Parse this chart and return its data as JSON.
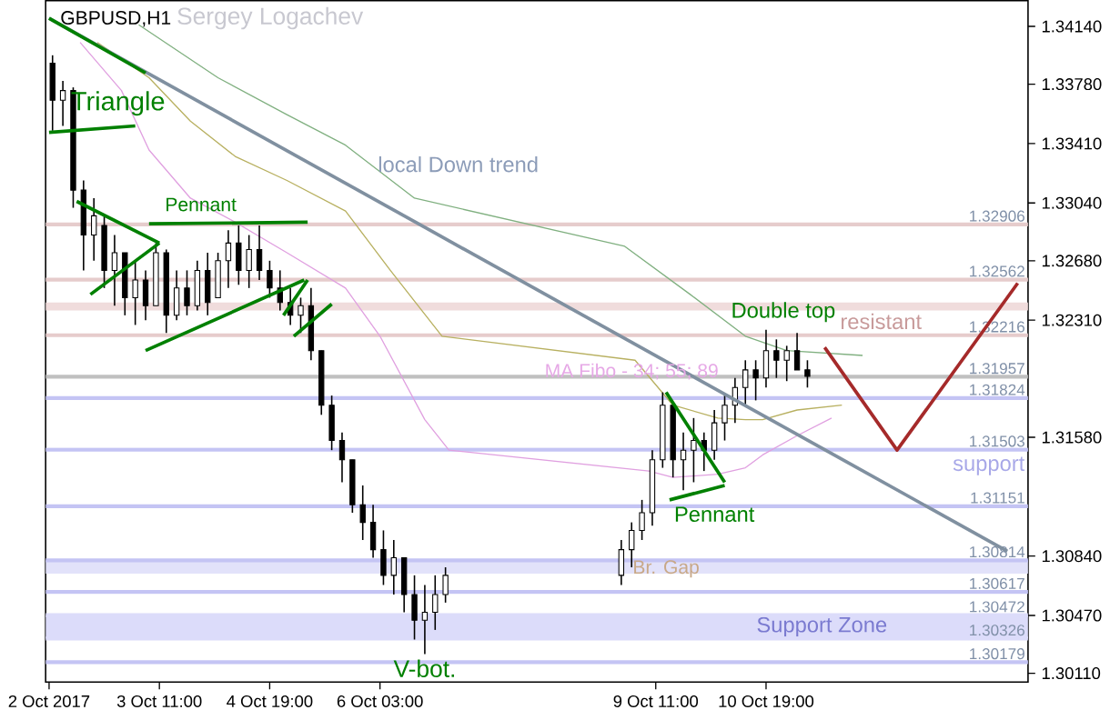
{
  "chart_data": {
    "type": "candlestick",
    "title": "GBPUSD,H1",
    "subtitle": "Sergey Logachev",
    "xlim": [
      "2017-10-02T02:00",
      "2017-10-13T23:00"
    ],
    "ylim": [
      1.30055,
      1.343
    ],
    "xticks": [
      {
        "value": "2017-10-02T03:00",
        "label": "2 Oct 2017"
      },
      {
        "value": "2017-10-03T11:00",
        "label": "3 Oct 11:00"
      },
      {
        "value": "2017-10-04T19:00",
        "label": "4 Oct 19:00"
      },
      {
        "value": "2017-10-06T03:00",
        "label": "6 Oct 03:00"
      },
      {
        "value": "2017-10-09T11:00",
        "label": "9 Oct 11:00"
      },
      {
        "value": "2017-10-10T19:00",
        "label": "10 Oct 19:00"
      }
    ],
    "yticks": [
      {
        "value": 1.3011,
        "label": "1.30110"
      },
      {
        "value": 1.3047,
        "label": "1.30470"
      },
      {
        "value": 1.3084,
        "label": "1.30840"
      },
      {
        "value": 1.3158,
        "label": "1.31580"
      },
      {
        "value": 1.3231,
        "label": "1.32310"
      },
      {
        "value": 1.3268,
        "label": "1.32680"
      },
      {
        "value": 1.3304,
        "label": "1.33040"
      },
      {
        "value": 1.3341,
        "label": "1.33410"
      },
      {
        "value": 1.3378,
        "label": "1.33780"
      },
      {
        "value": 1.3414,
        "label": "1.34140"
      }
    ],
    "series": [
      {
        "type": "line",
        "color": "#e0a0e0",
        "x": [
          "2017-10-02T12:00",
          "2017-10-03T00:00",
          "2017-10-03T08:00",
          "2017-10-03T20:00",
          "2017-10-04T09:00",
          "2017-10-05T00:00",
          "2017-10-05T17:00",
          "2017-10-06T03:00",
          "2017-10-06T16:00",
          "2017-10-06T23:00",
          "2017-10-09T09:00",
          "2017-10-09T16:00",
          "2017-10-10T05:00",
          "2017-10-10T13:00",
          "2017-10-10T18:00",
          "2017-10-11T04:00",
          "2017-10-11T14:00"
        ],
        "values": [
          1.3404,
          1.3374,
          1.3337,
          1.3307,
          1.3292,
          1.3273,
          1.3251,
          1.3221,
          1.3169,
          1.315,
          1.3137,
          1.3133,
          1.3135,
          1.3139,
          1.3147,
          1.3159,
          1.317
        ]
      },
      {
        "type": "line",
        "color": "#b8b060",
        "x": [
          "2017-10-02T17:00",
          "2017-10-03T08:00",
          "2017-10-03T20:00",
          "2017-10-04T09:00",
          "2017-10-05T00:00",
          "2017-10-05T17:00",
          "2017-10-06T06:00",
          "2017-10-06T21:00",
          "2017-10-09T05:00",
          "2017-10-09T16:00",
          "2017-10-10T05:00",
          "2017-10-10T13:00",
          "2017-10-10T18:00",
          "2017-10-11T04:00",
          "2017-10-11T17:00"
        ],
        "values": [
          1.3404,
          1.3382,
          1.3355,
          1.3333,
          1.3318,
          1.3299,
          1.3262,
          1.3221,
          1.3206,
          1.3178,
          1.317,
          1.3169,
          1.3169,
          1.3175,
          1.3178
        ]
      },
      {
        "type": "line",
        "color": "#80b080",
        "x": [
          "2017-10-03T05:00",
          "2017-10-04T04:00",
          "2017-10-05T00:00",
          "2017-10-05T17:00",
          "2017-10-06T13:00",
          "2017-10-09T02:00",
          "2017-10-09T21:00",
          "2017-10-10T13:00",
          "2017-10-11T01:00",
          "2017-10-11T23:00"
        ],
        "values": [
          1.3415,
          1.3382,
          1.3359,
          1.334,
          1.3307,
          1.3277,
          1.3247,
          1.3221,
          1.3212,
          1.3209
        ]
      },
      {
        "type": "candlestick",
        "color": "#000000",
        "x": [
          "2017-10-02T04:00",
          "2017-10-02T07:00",
          "2017-10-02T10:00",
          "2017-10-02T13:00",
          "2017-10-02T16:00",
          "2017-10-02T19:00",
          "2017-10-02T22:00",
          "2017-10-03T01:00",
          "2017-10-03T04:00",
          "2017-10-03T07:00",
          "2017-10-03T10:00",
          "2017-10-03T13:00",
          "2017-10-03T16:00",
          "2017-10-03T19:00",
          "2017-10-03T22:00",
          "2017-10-04T01:00",
          "2017-10-04T04:00",
          "2017-10-04T07:00",
          "2017-10-04T10:00",
          "2017-10-04T13:00",
          "2017-10-04T16:00",
          "2017-10-04T19:00",
          "2017-10-04T22:00",
          "2017-10-05T01:00",
          "2017-10-05T04:00",
          "2017-10-05T07:00",
          "2017-10-05T10:00",
          "2017-10-05T13:00",
          "2017-10-05T16:00",
          "2017-10-05T19:00",
          "2017-10-05T22:00",
          "2017-10-06T01:00",
          "2017-10-06T04:00",
          "2017-10-06T07:00",
          "2017-10-06T10:00",
          "2017-10-06T13:00",
          "2017-10-06T16:00",
          "2017-10-06T19:00",
          "2017-10-06T22:00",
          "2017-10-09T01:00",
          "2017-10-09T04:00",
          "2017-10-09T07:00",
          "2017-10-09T10:00",
          "2017-10-09T13:00",
          "2017-10-09T16:00",
          "2017-10-09T19:00",
          "2017-10-09T22:00",
          "2017-10-10T01:00",
          "2017-10-10T04:00",
          "2017-10-10T07:00",
          "2017-10-10T10:00",
          "2017-10-10T13:00",
          "2017-10-10T16:00",
          "2017-10-10T19:00",
          "2017-10-10T22:00",
          "2017-10-11T01:00",
          "2017-10-11T04:00",
          "2017-10-11T07:00"
        ],
        "ohlc": [
          [
            1.3391,
            1.3396,
            1.3349,
            1.3368
          ],
          [
            1.3368,
            1.338,
            1.3352,
            1.3374
          ],
          [
            1.3374,
            1.3376,
            1.3301,
            1.3312
          ],
          [
            1.3312,
            1.3318,
            1.3262,
            1.3284
          ],
          [
            1.3284,
            1.3307,
            1.3268,
            1.3296
          ],
          [
            1.329,
            1.3296,
            1.3251,
            1.3262
          ],
          [
            1.3262,
            1.3284,
            1.324,
            1.3273
          ],
          [
            1.3273,
            1.3273,
            1.3234,
            1.3245
          ],
          [
            1.3245,
            1.3268,
            1.3228,
            1.3256
          ],
          [
            1.3256,
            1.3262,
            1.3231,
            1.324
          ],
          [
            1.324,
            1.3279,
            1.324,
            1.3273
          ],
          [
            1.3273,
            1.3275,
            1.3223,
            1.3234
          ],
          [
            1.3234,
            1.3262,
            1.3231,
            1.3251
          ],
          [
            1.3251,
            1.3262,
            1.3234,
            1.324
          ],
          [
            1.324,
            1.3268,
            1.3237,
            1.3262
          ],
          [
            1.3262,
            1.3273,
            1.3234,
            1.3242
          ],
          [
            1.3245,
            1.3273,
            1.3245,
            1.3268
          ],
          [
            1.3268,
            1.3287,
            1.3251,
            1.3279
          ],
          [
            1.3279,
            1.329,
            1.3253,
            1.3262
          ],
          [
            1.3262,
            1.3284,
            1.3251,
            1.3275
          ],
          [
            1.3275,
            1.329,
            1.3256,
            1.3262
          ],
          [
            1.3262,
            1.3268,
            1.3245,
            1.3251
          ],
          [
            1.3251,
            1.3262,
            1.3237,
            1.3242
          ],
          [
            1.3242,
            1.3251,
            1.3228,
            1.3234
          ],
          [
            1.3234,
            1.3245,
            1.3223,
            1.324
          ],
          [
            1.324,
            1.3251,
            1.3206,
            1.3212
          ],
          [
            1.3212,
            1.3212,
            1.3172,
            1.3178
          ],
          [
            1.3178,
            1.3184,
            1.315,
            1.3156
          ],
          [
            1.3156,
            1.3161,
            1.313,
            1.3144
          ],
          [
            1.3144,
            1.3144,
            1.3111,
            1.3116
          ],
          [
            1.3116,
            1.3128,
            1.3094,
            1.3105
          ],
          [
            1.3105,
            1.3116,
            1.3083,
            1.3088
          ],
          [
            1.3088,
            1.31,
            1.3066,
            1.3072
          ],
          [
            1.3072,
            1.3094,
            1.306,
            1.3083
          ],
          [
            1.3083,
            1.3083,
            1.3049,
            1.306
          ],
          [
            1.306,
            1.3072,
            1.3032,
            1.3044
          ],
          [
            1.3044,
            1.3066,
            1.3023,
            1.3049
          ],
          [
            1.3049,
            1.3072,
            1.3038,
            1.306
          ],
          [
            1.306,
            1.3077,
            1.3055,
            1.3072
          ],
          [
            1.3072,
            1.3094,
            1.3066,
            1.3088
          ],
          [
            1.3088,
            1.3105,
            1.3077,
            1.31
          ],
          [
            1.31,
            1.3119,
            1.3094,
            1.3111
          ],
          [
            1.3111,
            1.315,
            1.3103,
            1.3144
          ],
          [
            1.3144,
            1.3186,
            1.3139,
            1.3178
          ],
          [
            1.3178,
            1.3178,
            1.3133,
            1.3144
          ],
          [
            1.3144,
            1.3161,
            1.3125,
            1.315
          ],
          [
            1.315,
            1.317,
            1.313,
            1.3156
          ],
          [
            1.3156,
            1.3161,
            1.3137,
            1.315
          ],
          [
            1.315,
            1.3175,
            1.3144,
            1.3167
          ],
          [
            1.3167,
            1.3184,
            1.3156,
            1.3178
          ],
          [
            1.3178,
            1.3195,
            1.3167,
            1.3189
          ],
          [
            1.3189,
            1.3206,
            1.3178,
            1.32
          ],
          [
            1.32,
            1.3206,
            1.3181,
            1.3195
          ],
          [
            1.3195,
            1.3225,
            1.3189,
            1.3212
          ],
          [
            1.3212,
            1.3219,
            1.3195,
            1.3206
          ],
          [
            1.3206,
            1.3215,
            1.3193,
            1.3212
          ],
          [
            1.3212,
            1.3223,
            1.32,
            1.32
          ],
          [
            1.32,
            1.3206,
            1.3189,
            1.3196
          ]
        ]
      },
      {
        "type": "line",
        "color": "#8090a0",
        "x": [
          "2017-10-02T03:00",
          "2017-10-13T17:00"
        ],
        "values": [
          1.3419,
          1.3087
        ]
      },
      {
        "type": "line",
        "color": "#a52a2a",
        "x": [
          "2017-10-11T12:00",
          "2017-10-12T09:00",
          "2017-10-13T20:00"
        ],
        "values": [
          1.3214,
          1.315,
          1.3254
        ]
      },
      {
        "type": "line",
        "color": "#008000",
        "x": [
          "2017-10-02T03:00",
          "2017-10-03T07:00"
        ],
        "values": [
          1.3419,
          1.3385
        ]
      },
      {
        "type": "line",
        "color": "#008000",
        "x": [
          "2017-10-02T03:00",
          "2017-10-03T04:00"
        ],
        "values": [
          1.3348,
          1.3352
        ]
      },
      {
        "type": "line",
        "color": "#008000",
        "x": [
          "2017-10-02T11:00",
          "2017-10-03T11:00"
        ],
        "values": [
          1.3305,
          1.3279
        ]
      },
      {
        "type": "line",
        "color": "#008000",
        "x": [
          "2017-10-02T15:00",
          "2017-10-03T11:00"
        ],
        "values": [
          1.3247,
          1.3279
        ]
      },
      {
        "type": "line",
        "color": "#008000",
        "x": [
          "2017-10-03T08:00",
          "2017-10-05T06:00"
        ],
        "values": [
          1.3291,
          1.3292
        ]
      },
      {
        "type": "line",
        "color": "#008000",
        "x": [
          "2017-10-03T07:00",
          "2017-10-05T05:00"
        ],
        "values": [
          1.3212,
          1.3256
        ]
      },
      {
        "type": "line",
        "color": "#008000",
        "x": [
          "2017-10-04T23:00",
          "2017-10-05T06:00"
        ],
        "values": [
          1.3234,
          1.3256
        ]
      },
      {
        "type": "line",
        "color": "#008000",
        "x": [
          "2017-10-05T02:00",
          "2017-10-05T13:00"
        ],
        "values": [
          1.3221,
          1.3241
        ]
      },
      {
        "type": "line",
        "color": "#008000",
        "x": [
          "2017-10-09T14:00",
          "2017-10-10T07:00"
        ],
        "values": [
          1.3186,
          1.313
        ]
      },
      {
        "type": "line",
        "color": "#008000",
        "x": [
          "2017-10-09T15:00",
          "2017-10-10T07:00"
        ],
        "values": [
          1.3119,
          1.3128
        ]
      }
    ],
    "bands": [
      {
        "axis": "y",
        "from": 1.3237,
        "to": 1.3242,
        "label": "resistant",
        "color": "#f0dcdc"
      },
      {
        "axis": "y",
        "from": 1.3073,
        "to": 1.30814,
        "color": "#e2e2fa"
      },
      {
        "axis": "y",
        "from": 1.30326,
        "to": 1.30472,
        "label": "Support Zone",
        "color": "#dcdcfa"
      }
    ],
    "ref_lines": [
      {
        "axis": "y",
        "value": 1.32906,
        "label": "1.32906",
        "color": "#e6cccc"
      },
      {
        "axis": "y",
        "value": 1.32562,
        "label": "1.32562",
        "color": "#e6cccc"
      },
      {
        "axis": "y",
        "value": 1.32216,
        "label": "1.32216",
        "color": "#e6cccc"
      },
      {
        "axis": "y",
        "value": 1.31957,
        "label": "1.31957",
        "color": "#c0c0c0"
      },
      {
        "axis": "y",
        "value": 1.31824,
        "label": "1.31824",
        "color": "#c4c4f4"
      },
      {
        "axis": "y",
        "value": 1.31503,
        "label": "1.31503",
        "color": "#c4c4f4"
      },
      {
        "axis": "y",
        "value": 1.31151,
        "label": "1.31151",
        "color": "#c4c4f4"
      },
      {
        "axis": "y",
        "value": 1.30814,
        "label": "1.30814",
        "color": "#c4c4f4"
      },
      {
        "axis": "y",
        "value": 1.30617,
        "label": "1.30617",
        "color": "#c4c4f4"
      },
      {
        "axis": "y",
        "value": 1.30472,
        "label": "1.30472",
        "color": "#dcdcfa"
      },
      {
        "axis": "y",
        "value": 1.30326,
        "label": "1.30326",
        "color": "#dcdcfa"
      },
      {
        "axis": "y",
        "value": 1.30179,
        "label": "1.30179",
        "color": "#c4c4f4"
      }
    ],
    "annotations": [
      {
        "text": "Triangle",
        "x": "2017-10-02T23:00",
        "y": 1.3366
      },
      {
        "text": "Pennant",
        "x": "2017-10-03T23:00",
        "y": 1.3303
      },
      "local Down trend",
      {
        "text": "Double top",
        "x": "2017-10-11T00:00",
        "y": 1.3236
      },
      {
        "text": "MA Fibo - 34; 55; 89",
        "x": "2017-10-09T04:00",
        "y": 1.3199
      },
      {
        "text": "Pennant",
        "x": "2017-10-10T04:00",
        "y": 1.311
      },
      {
        "text": "Br. Gap",
        "x": "2017-10-09T14:00",
        "y": 1.3076
      },
      "V-bot.",
      "support"
    ]
  }
}
